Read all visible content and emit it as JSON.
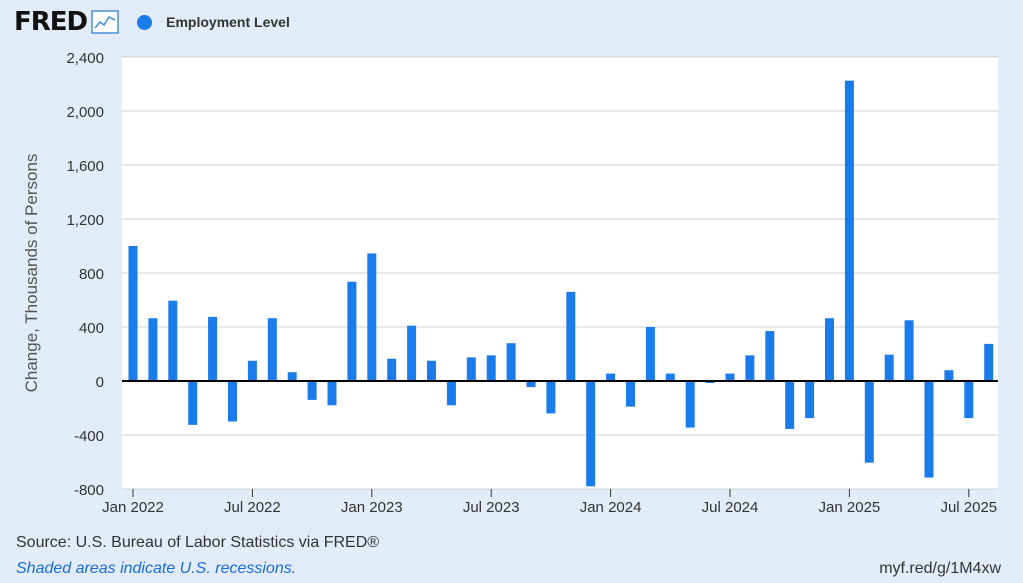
{
  "header": {
    "logo_text": "FRED",
    "legend_label": "Employment Level"
  },
  "colors": {
    "bar": "#1a7bea",
    "background": "#e1ecf8",
    "plot": "#ffffff",
    "grid": "#d0d0d0"
  },
  "chart_data": {
    "type": "bar",
    "ylabel": "Change, Thousands of Persons",
    "ylim": [
      -800,
      2400
    ],
    "yticks": [
      -800,
      -400,
      0,
      400,
      800,
      1200,
      1600,
      2000,
      2400
    ],
    "ytick_labels": [
      "-800",
      "-400",
      "0",
      "400",
      "800",
      "1,200",
      "1,600",
      "2,000",
      "2,400"
    ],
    "xtick_labels": [
      "Jan 2022",
      "Jul 2022",
      "Jan 2023",
      "Jul 2023",
      "Jan 2024",
      "Jul 2024",
      "Jan 2025",
      "Jul 2025"
    ],
    "xtick_indices": [
      0,
      6,
      12,
      18,
      24,
      30,
      36,
      42
    ],
    "grid": true,
    "series": [
      {
        "name": "Employment Level",
        "categories": [
          "2022-01",
          "2022-02",
          "2022-03",
          "2022-04",
          "2022-05",
          "2022-06",
          "2022-07",
          "2022-08",
          "2022-09",
          "2022-10",
          "2022-11",
          "2022-12",
          "2023-01",
          "2023-02",
          "2023-03",
          "2023-04",
          "2023-05",
          "2023-06",
          "2023-07",
          "2023-08",
          "2023-09",
          "2023-10",
          "2023-11",
          "2023-12",
          "2024-01",
          "2024-02",
          "2024-03",
          "2024-04",
          "2024-05",
          "2024-06",
          "2024-07",
          "2024-08",
          "2024-09",
          "2024-10",
          "2024-11",
          "2024-12",
          "2025-01",
          "2025-02",
          "2025-03",
          "2025-04",
          "2025-05",
          "2025-06",
          "2025-07",
          "2025-08"
        ],
        "values": [
          1000,
          465,
          595,
          -325,
          475,
          -300,
          150,
          465,
          65,
          -140,
          -180,
          735,
          945,
          165,
          410,
          150,
          -180,
          175,
          190,
          280,
          -45,
          -240,
          660,
          -780,
          55,
          -190,
          400,
          55,
          -345,
          -15,
          55,
          190,
          370,
          -355,
          -275,
          465,
          2225,
          -605,
          195,
          450,
          -715,
          80,
          -275,
          275
        ]
      }
    ]
  },
  "footer": {
    "source": "Source: U.S. Bureau of Labor Statistics via FRED®",
    "note": "Shaded areas indicate U.S. recessions.",
    "url": "myf.red/g/1M4xw"
  }
}
